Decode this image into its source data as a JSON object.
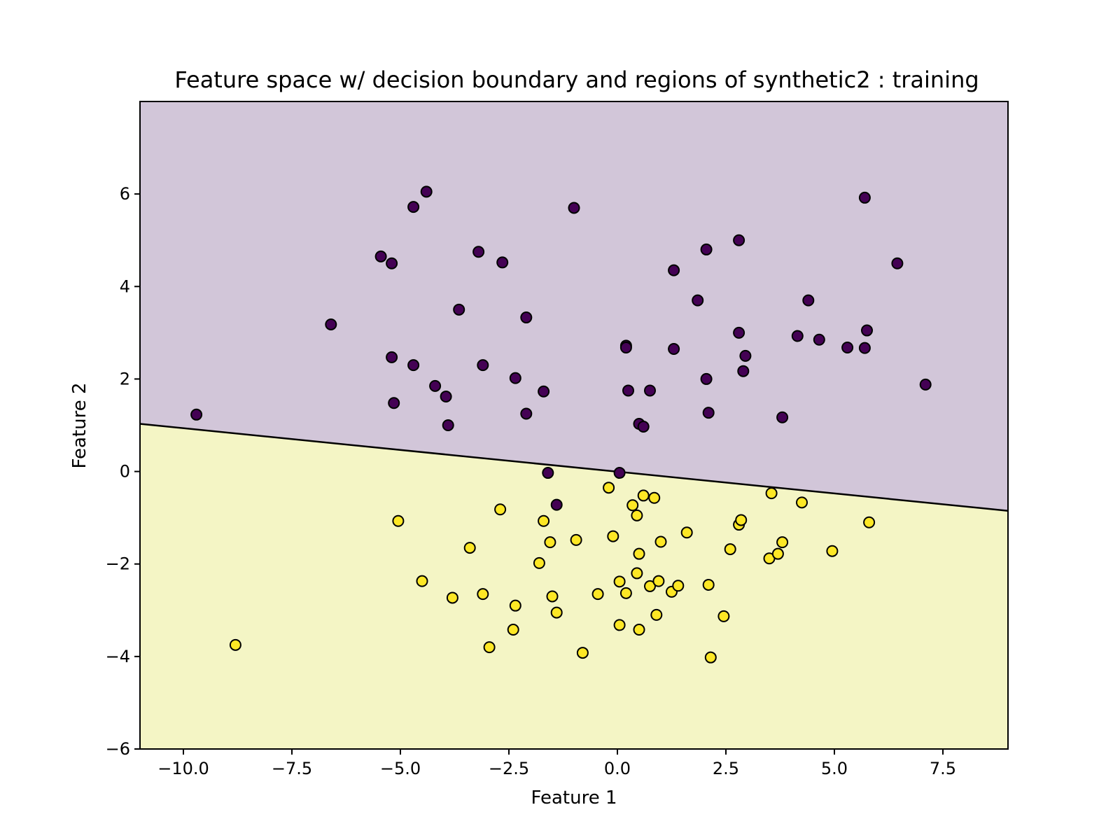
{
  "chart_data": {
    "type": "scatter",
    "title": "Feature space w/ decision boundary and regions of synthetic2 : training",
    "xlabel": "Feature 1",
    "ylabel": "Feature 2",
    "xlim": [
      -11.0,
      9.0
    ],
    "ylim": [
      -6.0,
      8.0
    ],
    "xticks": [
      -10.0,
      -7.5,
      -5.0,
      -2.5,
      0.0,
      2.5,
      5.0,
      7.5
    ],
    "xtick_labels": [
      "−10.0",
      "−7.5",
      "−5.0",
      "−2.5",
      "0.0",
      "2.5",
      "5.0",
      "7.5"
    ],
    "yticks": [
      -6,
      -4,
      -2,
      0,
      2,
      4,
      6
    ],
    "ytick_labels": [
      "−6",
      "−4",
      "−2",
      "0",
      "2",
      "4",
      "6"
    ],
    "grid": false,
    "decision_boundary": {
      "x": [
        -11.0,
        9.0
      ],
      "y": [
        1.03,
        -0.85
      ]
    },
    "regions": [
      {
        "class": 0,
        "side": "above",
        "color": "#d2c6d9"
      },
      {
        "class": 1,
        "side": "below",
        "color": "#f4f5c5"
      }
    ],
    "series": [
      {
        "class": 0,
        "color": "#440154",
        "points": [
          [
            -9.7,
            1.23
          ],
          [
            -6.6,
            3.18
          ],
          [
            -5.45,
            4.65
          ],
          [
            -5.2,
            4.5
          ],
          [
            -5.2,
            2.47
          ],
          [
            -5.15,
            1.48
          ],
          [
            -4.7,
            5.72
          ],
          [
            -4.7,
            2.3
          ],
          [
            -4.4,
            6.05
          ],
          [
            -4.2,
            1.85
          ],
          [
            -3.95,
            1.62
          ],
          [
            -3.9,
            1.0
          ],
          [
            -3.65,
            3.5
          ],
          [
            -3.2,
            4.75
          ],
          [
            -3.1,
            2.3
          ],
          [
            -2.65,
            4.52
          ],
          [
            -2.35,
            2.02
          ],
          [
            -2.1,
            3.33
          ],
          [
            -2.1,
            1.25
          ],
          [
            -1.7,
            1.73
          ],
          [
            -1.6,
            -0.03
          ],
          [
            -1.4,
            -0.72
          ],
          [
            -1.0,
            5.7
          ],
          [
            0.05,
            -0.03
          ],
          [
            0.2,
            2.72
          ],
          [
            0.2,
            2.68
          ],
          [
            0.25,
            1.75
          ],
          [
            0.5,
            1.03
          ],
          [
            0.6,
            0.97
          ],
          [
            0.75,
            1.75
          ],
          [
            1.3,
            4.35
          ],
          [
            1.3,
            2.65
          ],
          [
            1.85,
            3.7
          ],
          [
            2.05,
            4.8
          ],
          [
            2.05,
            2.0
          ],
          [
            2.1,
            1.27
          ],
          [
            2.8,
            5.0
          ],
          [
            2.8,
            3.0
          ],
          [
            2.9,
            2.17
          ],
          [
            2.95,
            2.5
          ],
          [
            3.8,
            1.17
          ],
          [
            4.15,
            2.93
          ],
          [
            4.4,
            3.7
          ],
          [
            4.65,
            2.85
          ],
          [
            5.3,
            2.68
          ],
          [
            5.7,
            5.92
          ],
          [
            5.7,
            2.67
          ],
          [
            5.75,
            3.05
          ],
          [
            6.45,
            4.5
          ],
          [
            7.1,
            1.88
          ]
        ]
      },
      {
        "class": 1,
        "color": "#fde725",
        "points": [
          [
            -8.8,
            -3.75
          ],
          [
            -5.05,
            -1.07
          ],
          [
            -4.5,
            -2.37
          ],
          [
            -3.8,
            -2.73
          ],
          [
            -3.4,
            -1.65
          ],
          [
            -3.1,
            -2.65
          ],
          [
            -2.95,
            -3.8
          ],
          [
            -2.7,
            -0.82
          ],
          [
            -2.4,
            -3.42
          ],
          [
            -2.35,
            -2.9
          ],
          [
            -1.8,
            -1.98
          ],
          [
            -1.7,
            -1.07
          ],
          [
            -1.55,
            -1.53
          ],
          [
            -1.5,
            -2.7
          ],
          [
            -1.4,
            -3.05
          ],
          [
            -0.95,
            -1.48
          ],
          [
            -0.8,
            -3.92
          ],
          [
            -0.45,
            -2.65
          ],
          [
            -0.2,
            -0.35
          ],
          [
            -0.1,
            -1.4
          ],
          [
            0.05,
            -2.38
          ],
          [
            0.05,
            -3.32
          ],
          [
            0.2,
            -2.63
          ],
          [
            0.35,
            -0.73
          ],
          [
            0.45,
            -0.95
          ],
          [
            0.45,
            -2.2
          ],
          [
            0.5,
            -1.78
          ],
          [
            0.5,
            -3.42
          ],
          [
            0.6,
            -0.52
          ],
          [
            0.75,
            -2.48
          ],
          [
            0.85,
            -0.57
          ],
          [
            0.9,
            -3.1
          ],
          [
            0.95,
            -2.37
          ],
          [
            1.0,
            -1.52
          ],
          [
            1.25,
            -2.6
          ],
          [
            1.4,
            -2.47
          ],
          [
            1.6,
            -1.32
          ],
          [
            2.1,
            -2.45
          ],
          [
            2.15,
            -4.02
          ],
          [
            2.45,
            -3.13
          ],
          [
            2.6,
            -1.68
          ],
          [
            2.8,
            -1.15
          ],
          [
            2.85,
            -1.05
          ],
          [
            3.5,
            -1.88
          ],
          [
            3.55,
            -0.47
          ],
          [
            3.7,
            -1.78
          ],
          [
            3.8,
            -1.53
          ],
          [
            4.25,
            -0.67
          ],
          [
            4.95,
            -1.72
          ],
          [
            5.8,
            -1.1
          ]
        ]
      }
    ]
  }
}
